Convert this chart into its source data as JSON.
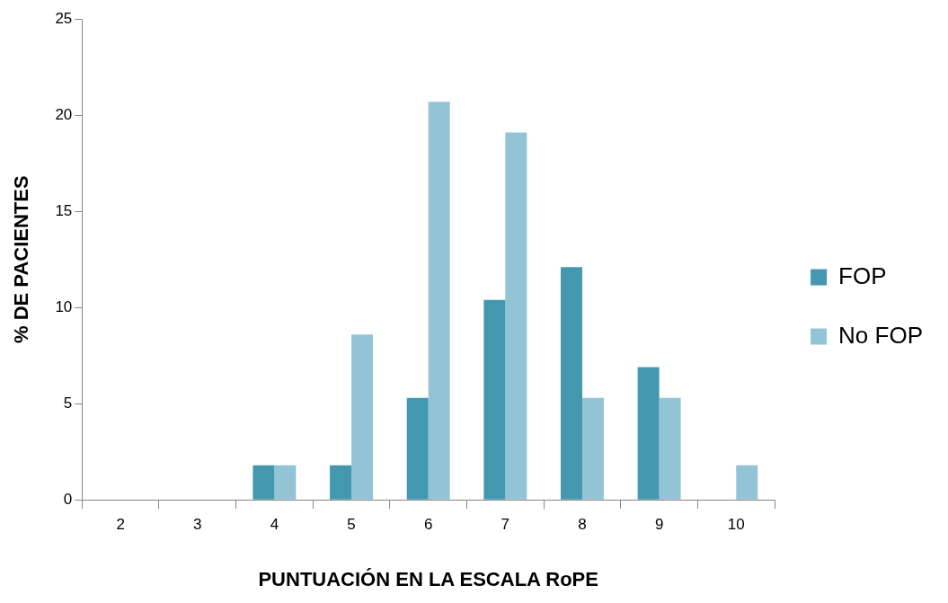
{
  "chart_data": {
    "type": "bar",
    "xlabel": "PUNTUACIÓN EN LA ESCALA RoPE",
    "ylabel": "% DE PACIENTES",
    "categories": [
      "2",
      "3",
      "4",
      "5",
      "6",
      "7",
      "8",
      "9",
      "10"
    ],
    "series": [
      {
        "name": "FOP",
        "color": "#4398b0",
        "values": [
          0,
          0,
          1.8,
          1.8,
          5.3,
          10.4,
          12.1,
          6.9,
          0
        ]
      },
      {
        "name": "No FOP",
        "color": "#93c4d5",
        "values": [
          0,
          0,
          1.8,
          8.6,
          20.7,
          19.1,
          5.3,
          5.3,
          1.8
        ]
      }
    ],
    "ylim": [
      0,
      25
    ],
    "yticks": [
      0,
      5,
      10,
      15,
      20,
      25
    ],
    "grid": false,
    "legend": "right"
  }
}
